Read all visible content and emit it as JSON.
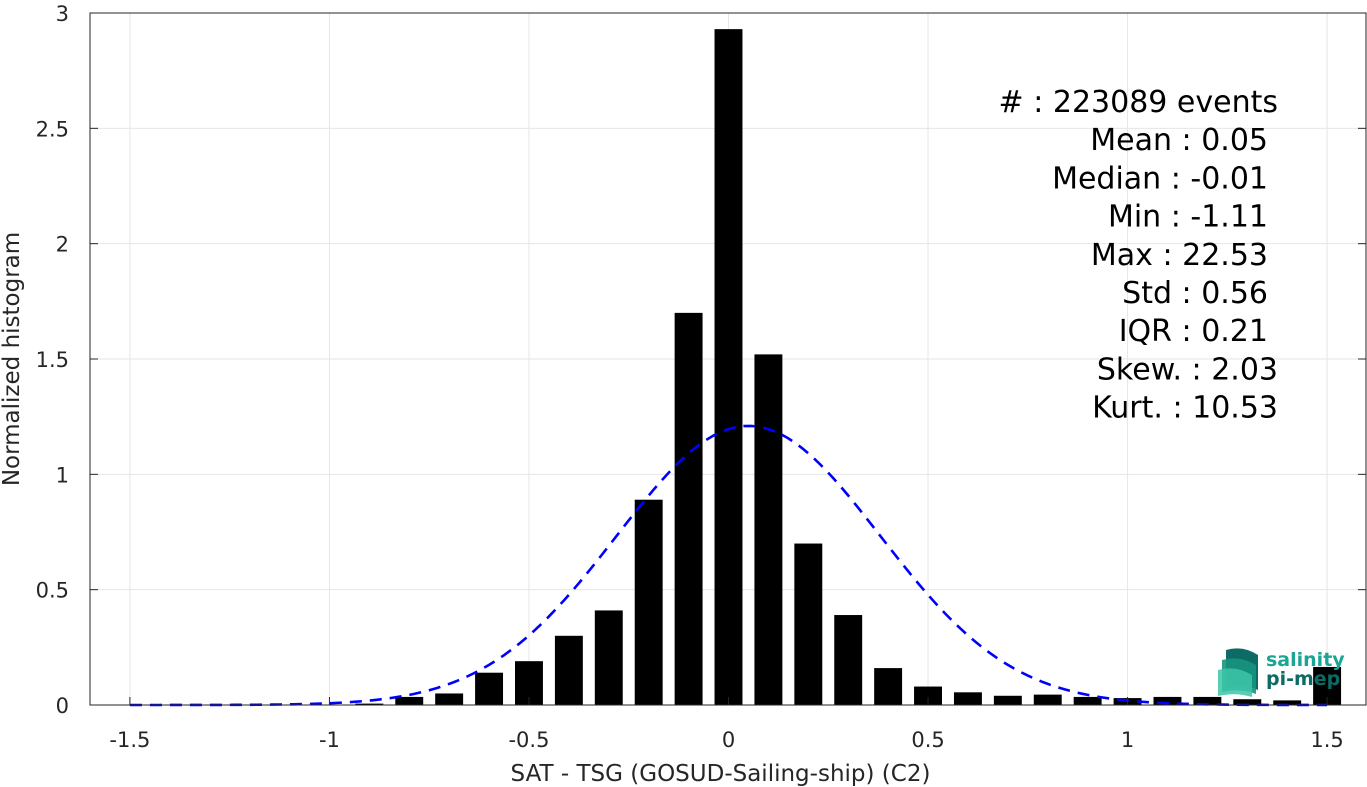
{
  "chart_data": {
    "type": "bar",
    "xlabel": "SAT - TSG (GOSUD-Sailing-ship) (C2)",
    "ylabel": "Normalized histogram",
    "xlim": [
      -1.6,
      1.6
    ],
    "ylim": [
      0,
      3
    ],
    "grid": true,
    "x_ticks": [
      -1.5,
      -1,
      -0.5,
      0,
      0.5,
      1,
      1.5
    ],
    "x_tick_labels": [
      "-1.5",
      "-1",
      "-0.5",
      "0",
      "0.5",
      "1",
      "1.5"
    ],
    "y_ticks": [
      0,
      0.5,
      1,
      1.5,
      2,
      2.5,
      3
    ],
    "y_tick_labels": [
      "0",
      "0.5",
      "1",
      "1.5",
      "2",
      "2.5",
      "3"
    ],
    "bar_width": 0.07,
    "bars": {
      "x": [
        -1.5,
        -1.4,
        -1.3,
        -1.2,
        -1.1,
        -1.0,
        -0.9,
        -0.8,
        -0.7,
        -0.6,
        -0.5,
        -0.4,
        -0.3,
        -0.2,
        -0.1,
        0.0,
        0.1,
        0.2,
        0.3,
        0.4,
        0.5,
        0.6,
        0.7,
        0.8,
        0.9,
        1.0,
        1.1,
        1.2,
        1.3,
        1.4,
        1.5
      ],
      "values": [
        0.0,
        0.0,
        0.0,
        0.0,
        0.0,
        0.002,
        0.006,
        0.035,
        0.05,
        0.14,
        0.19,
        0.3,
        0.41,
        0.89,
        1.7,
        2.93,
        1.52,
        0.7,
        0.39,
        0.16,
        0.08,
        0.055,
        0.04,
        0.045,
        0.035,
        0.03,
        0.035,
        0.035,
        0.025,
        0.02,
        0.165
      ]
    },
    "fit_curve": {
      "style": "dashed",
      "color": "#0000ff",
      "mean": 0.05,
      "std": 0.33,
      "peak": 1.21,
      "x_range": [
        -1.5,
        1.5
      ]
    },
    "colors": {
      "bars": "#000000",
      "fit": "#0000ff",
      "grid": "#e6e6e6"
    },
    "annotations": {
      "lines": [
        "#  : 223089 events",
        "Mean : 0.05",
        "Median : -0.01",
        "Min : -1.11",
        "Max : 22.53",
        "Std : 0.56",
        "IQR : 0.21",
        "Skew. : 2.03",
        "Kurt. : 10.53"
      ]
    }
  },
  "logo": {
    "line1": "salinity",
    "line2": "pi-mep",
    "color1": "#1aa594",
    "color2": "#0d6b66"
  }
}
